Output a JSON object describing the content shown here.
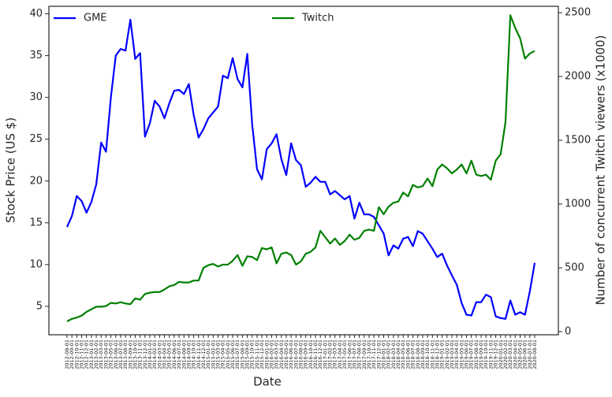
{
  "chart_data": {
    "type": "line",
    "xlabel": "Date",
    "ylabel": "Stock Price (US $)",
    "y2label": "Number of concurrent Twitch viewers (x1000)",
    "categories": [
      "2012-08-01",
      "2012-09-01",
      "2012-10-01",
      "2012-11-01",
      "2012-12-01",
      "2013-01-01",
      "2013-02-01",
      "2013-03-01",
      "2013-04-01",
      "2013-05-01",
      "2013-06-01",
      "2013-07-01",
      "2013-08-01",
      "2013-09-01",
      "2013-10-01",
      "2013-11-01",
      "2013-12-01",
      "2014-01-01",
      "2014-02-01",
      "2014-03-01",
      "2014-04-01",
      "2014-05-01",
      "2014-06-01",
      "2014-07-01",
      "2014-08-01",
      "2014-09-01",
      "2014-10-01",
      "2014-11-01",
      "2014-12-01",
      "2015-01-01",
      "2015-02-01",
      "2015-03-01",
      "2015-04-01",
      "2015-05-01",
      "2015-06-01",
      "2015-07-01",
      "2015-08-01",
      "2015-09-01",
      "2015-10-01",
      "2015-11-01",
      "2015-12-01",
      "2016-01-01",
      "2016-02-01",
      "2016-03-01",
      "2016-04-01",
      "2016-05-01",
      "2016-06-01",
      "2016-07-01",
      "2016-08-01",
      "2016-09-01",
      "2016-10-01",
      "2016-11-01",
      "2016-12-01",
      "2017-01-01",
      "2017-02-01",
      "2017-03-01",
      "2017-04-01",
      "2017-05-01",
      "2017-06-01",
      "2017-07-01",
      "2017-08-01",
      "2017-09-01",
      "2017-10-01",
      "2017-11-01",
      "2017-12-01",
      "2018-01-01",
      "2018-02-01",
      "2018-03-01",
      "2018-04-01",
      "2018-05-01",
      "2018-06-01",
      "2018-07-01",
      "2018-08-01",
      "2018-09-01",
      "2018-10-01",
      "2018-11-01",
      "2018-12-01",
      "2019-01-01",
      "2019-02-01",
      "2019-03-01",
      "2019-04-01",
      "2019-05-01",
      "2019-06-01",
      "2019-07-01",
      "2019-08-01",
      "2019-09-01",
      "2019-10-01",
      "2019-11-01",
      "2019-12-01",
      "2020-01-01",
      "2020-02-01",
      "2020-03-01",
      "2020-04-01",
      "2020-05-01",
      "2020-06-01",
      "2020-07-01",
      "2020-08-01"
    ],
    "series": [
      {
        "name": "GME",
        "color": "#0000ff",
        "axis": "y",
        "values": [
          14.5,
          15.8,
          18.2,
          17.6,
          16.2,
          17.5,
          19.6,
          24.6,
          23.5,
          30,
          35,
          35.8,
          35.6,
          39.3,
          34.6,
          35.3,
          25.3,
          26.9,
          29.6,
          28.9,
          27.5,
          29.3,
          30.8,
          30.9,
          30.4,
          31.6,
          27.9,
          25.2,
          26.2,
          27.5,
          28.2,
          28.9,
          32.6,
          32.3,
          34.7,
          32.2,
          31.2,
          35.2,
          26.8,
          21.4,
          20.2,
          23.8,
          24.5,
          25.6,
          22.6,
          20.7,
          24.5,
          22.5,
          21.9,
          19.3,
          19.8,
          20.5,
          19.9,
          19.9,
          18.4,
          18.8,
          18.3,
          17.8,
          18.2,
          15.5,
          17.4,
          16.0,
          16.0,
          15.7,
          14.7,
          13.7,
          11.1,
          12.3,
          11.9,
          13.1,
          13.3,
          12.2,
          14.0,
          13.7,
          12.8,
          11.9,
          10.9,
          11.3,
          9.9,
          8.7,
          7.6,
          5.4,
          4.0,
          3.9,
          5.5,
          5.5,
          6.4,
          6.1,
          3.8,
          3.6,
          3.5,
          5.7,
          4.0,
          4.3,
          4.0,
          6.8,
          10.2
        ]
      },
      {
        "name": "Twitch",
        "color": "#008000",
        "axis": "y2",
        "values": [
          80,
          100,
          110,
          125,
          155,
          175,
          195,
          195,
          200,
          225,
          220,
          230,
          220,
          215,
          260,
          250,
          295,
          305,
          310,
          310,
          330,
          355,
          365,
          390,
          385,
          385,
          400,
          400,
          500,
          520,
          530,
          510,
          525,
          525,
          555,
          600,
          515,
          590,
          585,
          560,
          655,
          645,
          660,
          535,
          610,
          620,
          600,
          525,
          550,
          610,
          625,
          660,
          790,
          740,
          690,
          730,
          680,
          710,
          760,
          720,
          735,
          790,
          800,
          790,
          975,
          920,
          980,
          1010,
          1020,
          1090,
          1060,
          1150,
          1130,
          1140,
          1200,
          1140,
          1270,
          1310,
          1280,
          1240,
          1270,
          1310,
          1240,
          1340,
          1230,
          1220,
          1230,
          1190,
          1340,
          1390,
          1640,
          2480,
          2380,
          2300,
          2140,
          2180,
          2200
        ]
      }
    ],
    "ylim": [
      1.6,
      40.9
    ],
    "yticks": [
      5,
      10,
      15,
      20,
      25,
      30,
      35,
      40
    ],
    "y2lim": [
      -25,
      2550
    ],
    "y2ticks": [
      0,
      500,
      1000,
      1500,
      2000,
      2500
    ]
  }
}
